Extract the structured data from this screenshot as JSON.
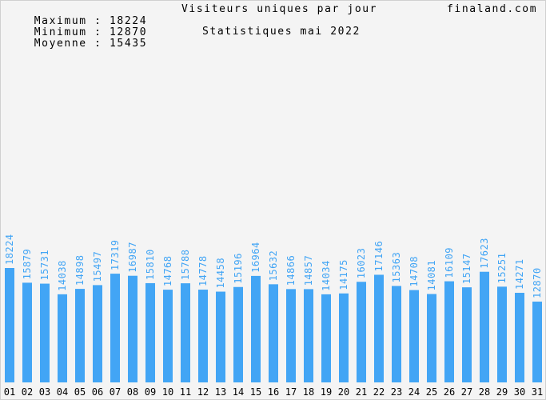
{
  "header": {
    "stats": [
      {
        "label": "Maximum",
        "value": "18224"
      },
      {
        "label": "Minimum",
        "value": "12870"
      },
      {
        "label": "Moyenne",
        "value": "15435"
      }
    ],
    "title": "Visiteurs uniques par jour",
    "subtitle": "Statistiques mai 2022",
    "site": "finaland.com"
  },
  "colors": {
    "background": "#f4f4f4",
    "bar": "#42a5f5",
    "value_label": "#42a5f5",
    "border": "#d0d0d0"
  },
  "chart_data": {
    "type": "bar",
    "title": "Visiteurs uniques par jour",
    "subtitle": "Statistiques mai 2022",
    "categories": [
      "01",
      "02",
      "03",
      "04",
      "05",
      "06",
      "07",
      "08",
      "09",
      "10",
      "11",
      "12",
      "13",
      "14",
      "15",
      "16",
      "17",
      "18",
      "19",
      "20",
      "21",
      "22",
      "23",
      "24",
      "25",
      "26",
      "27",
      "28",
      "29",
      "30",
      "31"
    ],
    "values": [
      18224,
      15879,
      15731,
      14038,
      14898,
      15497,
      17319,
      16987,
      15810,
      14768,
      15788,
      14778,
      14458,
      15196,
      16964,
      15632,
      14866,
      14857,
      14034,
      14175,
      16023,
      17146,
      15363,
      14708,
      14081,
      16109,
      15147,
      17623,
      15251,
      14271,
      12870
    ],
    "ylim": [
      0,
      36448
    ],
    "grid": false,
    "legend": "none"
  }
}
